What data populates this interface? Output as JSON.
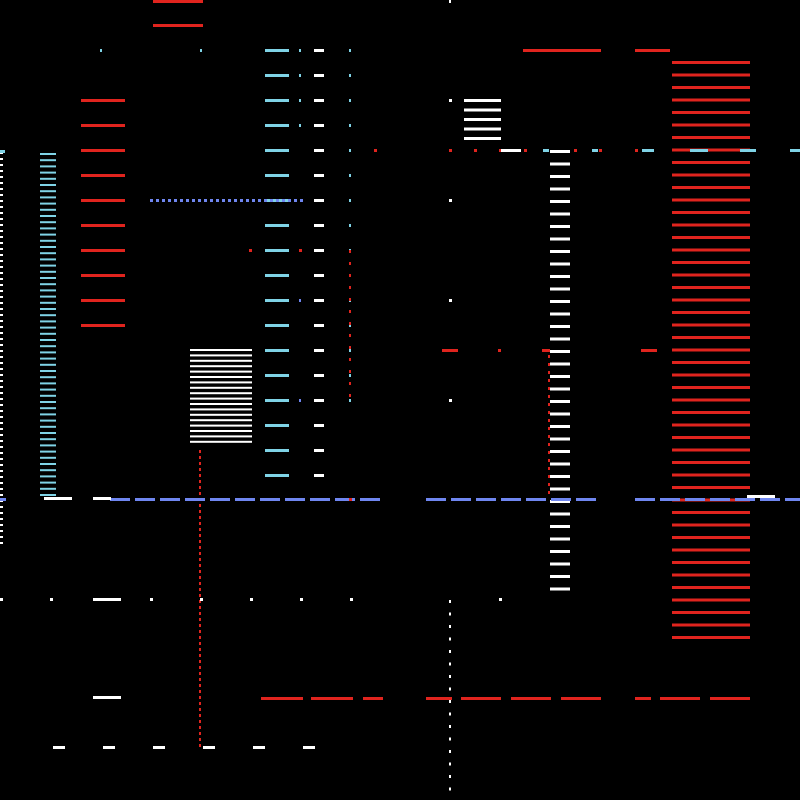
{
  "palette": {
    "background": "#000000",
    "white": "#ffffff",
    "red": "#e0241e",
    "cyan": "#7fd3e6",
    "blue": "#6f86f0"
  }
}
